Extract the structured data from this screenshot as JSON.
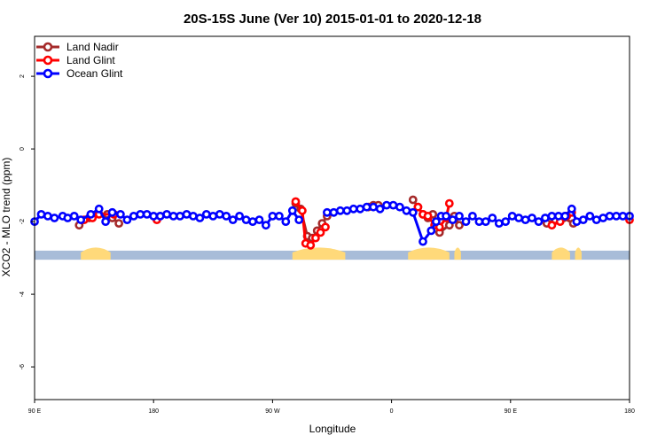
{
  "chart_data": {
    "type": "line",
    "title": "20S-15S June (Ver 10)   2015-01-01 to 2020-12-18",
    "xlabel": "Longitude",
    "ylabel": "XCO2 - MLO trend (ppm)",
    "xlim": [
      -90,
      270
    ],
    "ylim": [
      -6.9,
      3.1
    ],
    "x_ticks": [
      {
        "value": -90,
        "label": "90 E"
      },
      {
        "value": -18,
        "label": "180"
      },
      {
        "value": 54,
        "label": "90 W"
      },
      {
        "value": 126,
        "label": "0"
      },
      {
        "value": 198,
        "label": "90 E"
      },
      {
        "value": 270,
        "label": "180"
      }
    ],
    "y_ticks": [
      {
        "value": 2,
        "label": "2"
      },
      {
        "value": 0,
        "label": "0"
      },
      {
        "value": -2,
        "label": "-2"
      },
      {
        "value": -4,
        "label": "-4"
      },
      {
        "value": -6,
        "label": "-6"
      }
    ],
    "legend_position": "top-left",
    "series": [
      {
        "name": "Land Nadir",
        "color": "#a52a2a",
        "x": [
          -63,
          -57,
          -46,
          -43,
          -39,
          68,
          71,
          75,
          78,
          81,
          84,
          87,
          112,
          115,
          118,
          139,
          142,
          145,
          148,
          151,
          153,
          155,
          161,
          164,
          167,
          220,
          225,
          230,
          236
        ],
        "y": [
          -2.1,
          -1.9,
          -1.8,
          -1.9,
          -2.05,
          -1.5,
          -1.65,
          -2.4,
          -2.45,
          -2.25,
          -2.05,
          -1.85,
          -1.6,
          -1.55,
          -1.55,
          -1.4,
          -1.6,
          -1.8,
          -1.9,
          -1.8,
          -2.1,
          -2.3,
          -2.1,
          -1.85,
          -2.1,
          -2.05,
          -1.95,
          -1.9,
          -2.05
        ]
      },
      {
        "name": "Land Glint",
        "color": "#ff0000",
        "x": [
          -60,
          -55,
          -51,
          -42,
          -16,
          68,
          72,
          74,
          77,
          80,
          83,
          86,
          142,
          145,
          148,
          152,
          155,
          159,
          161,
          223,
          228,
          232,
          235,
          270
        ],
        "y": [
          -1.95,
          -1.9,
          -1.8,
          -1.8,
          -1.95,
          -1.45,
          -1.7,
          -2.6,
          -2.65,
          -2.45,
          -2.3,
          -2.15,
          -1.6,
          -1.8,
          -1.85,
          -2.1,
          -2.15,
          -1.9,
          -1.5,
          -2.1,
          -2.0,
          -1.85,
          -1.75,
          -1.95
        ]
      },
      {
        "name": "Ocean Glint",
        "color": "#0000ff",
        "x": [
          -90,
          -86,
          -82,
          -78,
          -73,
          -70,
          -66,
          -62,
          -56,
          -51,
          -47,
          -43,
          -38,
          -34,
          -30,
          -26,
          -22,
          -18,
          -14,
          -10,
          -6,
          -2,
          2,
          6,
          10,
          14,
          18,
          22,
          26,
          30,
          34,
          38,
          42,
          46,
          50,
          54,
          58,
          62,
          66,
          70,
          87,
          91,
          95,
          99,
          103,
          107,
          111,
          115,
          119,
          123,
          127,
          131,
          135,
          139,
          145,
          150,
          153,
          156,
          159,
          163,
          167,
          171,
          175,
          179,
          183,
          187,
          191,
          195,
          199,
          203,
          207,
          211,
          215,
          219,
          223,
          227,
          231,
          235,
          238,
          242,
          246,
          250,
          254,
          258,
          262,
          266,
          270
        ],
        "y": [
          -2.0,
          -1.8,
          -1.85,
          -1.9,
          -1.85,
          -1.9,
          -1.85,
          -1.95,
          -1.8,
          -1.65,
          -2.0,
          -1.75,
          -1.8,
          -1.95,
          -1.85,
          -1.8,
          -1.8,
          -1.85,
          -1.85,
          -1.8,
          -1.85,
          -1.85,
          -1.8,
          -1.85,
          -1.9,
          -1.8,
          -1.85,
          -1.8,
          -1.85,
          -1.95,
          -1.85,
          -1.95,
          -2.0,
          -1.95,
          -2.1,
          -1.85,
          -1.85,
          -2.0,
          -1.7,
          -1.95,
          -1.75,
          -1.75,
          -1.7,
          -1.7,
          -1.65,
          -1.65,
          -1.6,
          -1.6,
          -1.65,
          -1.55,
          -1.55,
          -1.6,
          -1.7,
          -1.75,
          -2.55,
          -2.25,
          -2.0,
          -1.85,
          -1.85,
          -1.95,
          -1.85,
          -2.0,
          -1.85,
          -2.0,
          -2.0,
          -1.9,
          -2.05,
          -2.0,
          -1.85,
          -1.9,
          -1.95,
          -1.9,
          -2.0,
          -1.9,
          -1.85,
          -1.85,
          -1.85,
          -1.65,
          -2.0,
          -1.95,
          -1.85,
          -1.95,
          -1.9,
          -1.85,
          -1.85,
          -1.85,
          -1.85
        ]
      }
    ],
    "background_band": {
      "y_range": [
        -3.05,
        -2.8
      ],
      "ocean_color": "#a8bcd8",
      "land_color": "#ffd97a",
      "land_segments": [
        [
          -62,
          -44
        ],
        [
          66,
          98
        ],
        [
          136,
          161
        ],
        [
          164,
          168
        ],
        [
          223,
          234
        ],
        [
          237,
          241
        ]
      ]
    }
  }
}
